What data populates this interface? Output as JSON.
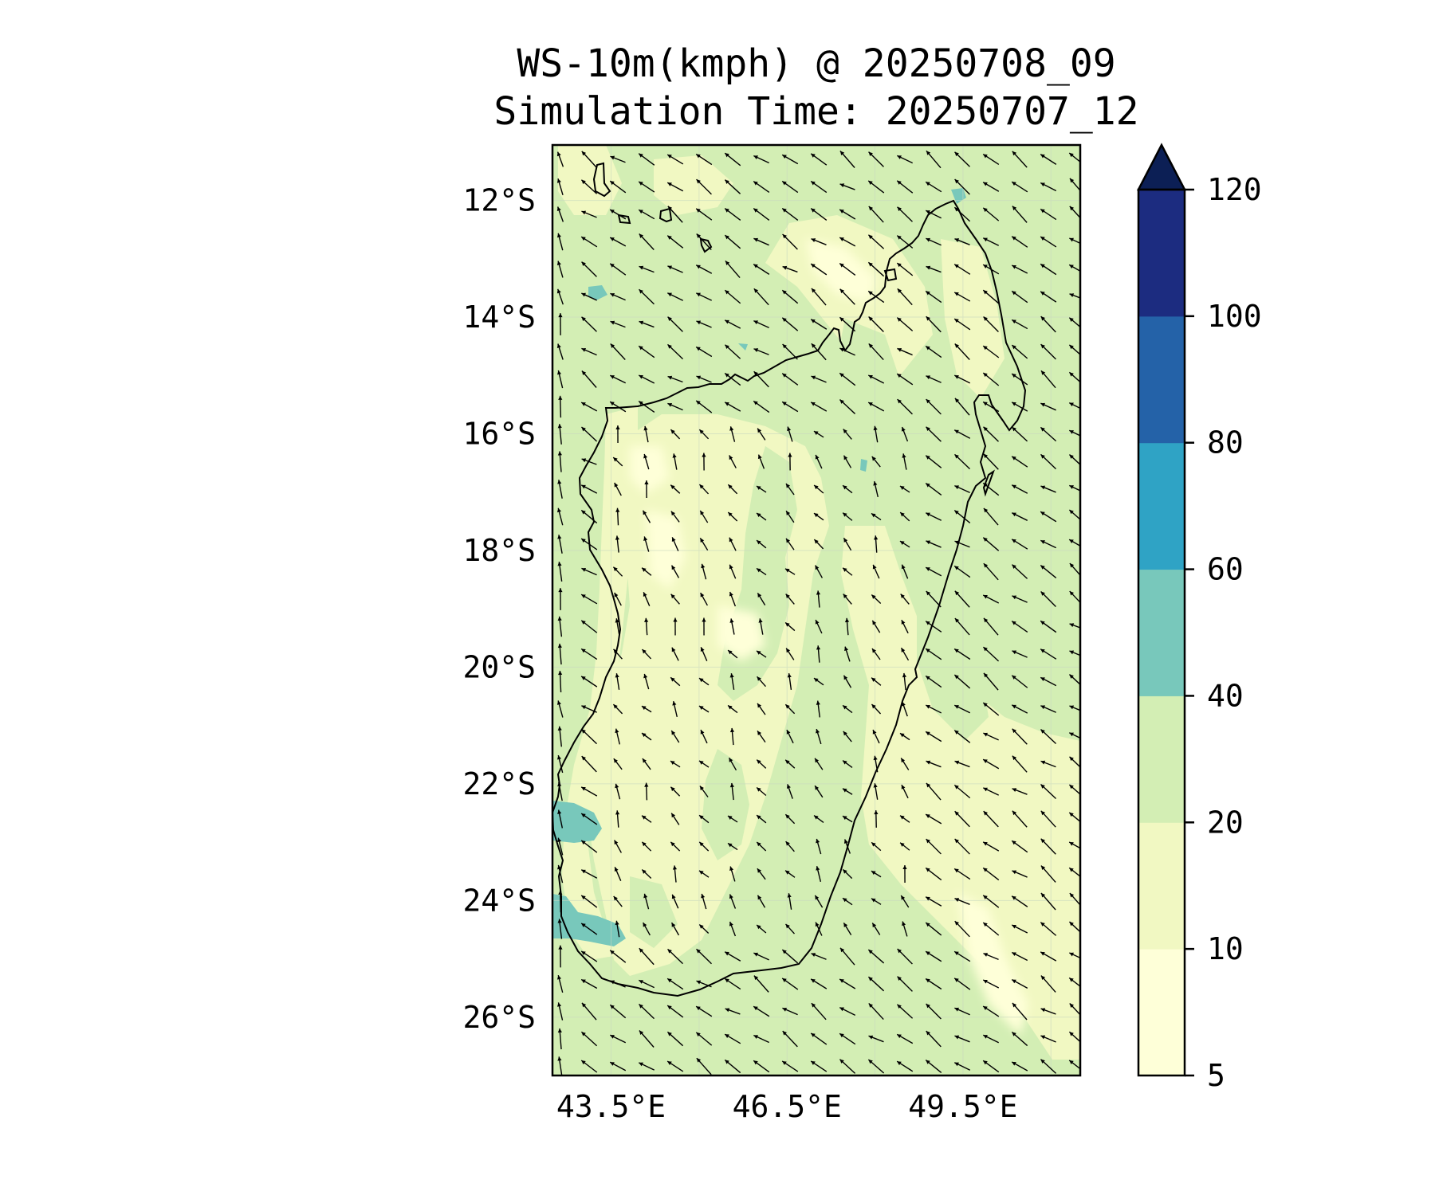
{
  "title": {
    "line1": "WS-10m(kmph) @ 20250708_09",
    "line2": "Simulation Time: 20250707_12"
  },
  "map": {
    "region": "Madagascar",
    "lat_ticks": [
      "12°S",
      "14°S",
      "16°S",
      "18°S",
      "20°S",
      "22°S",
      "24°S",
      "26°S"
    ],
    "lat_values": [
      -12,
      -14,
      -16,
      -18,
      -20,
      -22,
      -24,
      -26
    ],
    "lon_ticks": [
      "43.5°E",
      "46.5°E",
      "49.5°E"
    ],
    "lon_values": [
      43.5,
      46.5,
      49.5
    ],
    "extent": {
      "lon_min": 42.5,
      "lon_max": 51.5,
      "lat_min": -27.0,
      "lat_max": -11.05
    },
    "wind_vectors": "prevailing south-easterly trade winds, arrows pointing north-west",
    "colors": {
      "band_5_10": "#feffd8",
      "band_10_20": "#f1f8c2",
      "band_20_40": "#d3eeb4",
      "band_40_60": "#78c8bb",
      "band_60_80": "#2fa3c5",
      "band_80_100": "#2462a8",
      "band_100_120": "#1c2c80",
      "over_120": "#0c1f55"
    }
  },
  "colorbar": {
    "levels": [
      5,
      10,
      20,
      40,
      60,
      80,
      100,
      120
    ],
    "tick_labels": [
      "5",
      "10",
      "20",
      "40",
      "60",
      "80",
      "100",
      "120"
    ],
    "extend": "max",
    "colors": [
      "#feffd8",
      "#f1f8c2",
      "#d3eeb4",
      "#78c8bb",
      "#2fa3c5",
      "#2462a8",
      "#1c2c80"
    ],
    "over_color": "#0c1f55"
  }
}
